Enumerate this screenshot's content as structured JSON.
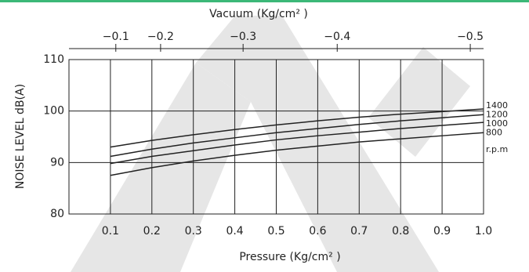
{
  "chart_data": {
    "type": "line",
    "title": "Vacuum  (Kg/cm² )",
    "x_label": "Pressure  (Kg/cm² )",
    "y_label": "NOISE  LEVEL  dB(A)",
    "unit_label": "r.p.m",
    "x": [
      0.1,
      0.2,
      0.3,
      0.4,
      0.5,
      0.6,
      0.7,
      0.8,
      0.9,
      1.0
    ],
    "xlim": [
      0,
      1
    ],
    "xticks": [
      0.1,
      0.2,
      0.3,
      0.4,
      0.5,
      0.6,
      0.7,
      0.8,
      0.9,
      {
        "value": 1,
        "label": "1.0"
      }
    ],
    "x2ticks": [
      {
        "value": 0.113,
        "label": "−0.1"
      },
      {
        "value": 0.221,
        "label": "−0.2"
      },
      {
        "value": 0.42,
        "label": "−0.3"
      },
      {
        "value": 0.647,
        "label": "−0.4"
      },
      {
        "value": 0.968,
        "label": "−0.5"
      }
    ],
    "ylim": [
      80,
      110
    ],
    "yticks": [
      80,
      90,
      100,
      110
    ],
    "grid": true,
    "series": [
      {
        "name": "1400",
        "color": "#222222",
        "values": [
          93,
          94.3,
          95.4,
          96.4,
          97.3,
          98.1,
          98.8,
          99.4,
          99.9,
          100.4
        ]
      },
      {
        "name": "1200",
        "color": "#222222",
        "values": [
          91.2,
          92.6,
          93.8,
          94.8,
          95.8,
          96.6,
          97.4,
          98.1,
          98.7,
          99.3
        ]
      },
      {
        "name": "1000",
        "color": "#222222",
        "values": [
          89.8,
          91.2,
          92.3,
          93.4,
          94.4,
          95.2,
          95.9,
          96.6,
          97.2,
          97.8
        ]
      },
      {
        "name": "800",
        "color": "#222222",
        "values": [
          87.5,
          89,
          90.3,
          91.4,
          92.4,
          93.2,
          94,
          94.6,
          95.2,
          95.8
        ]
      }
    ]
  }
}
